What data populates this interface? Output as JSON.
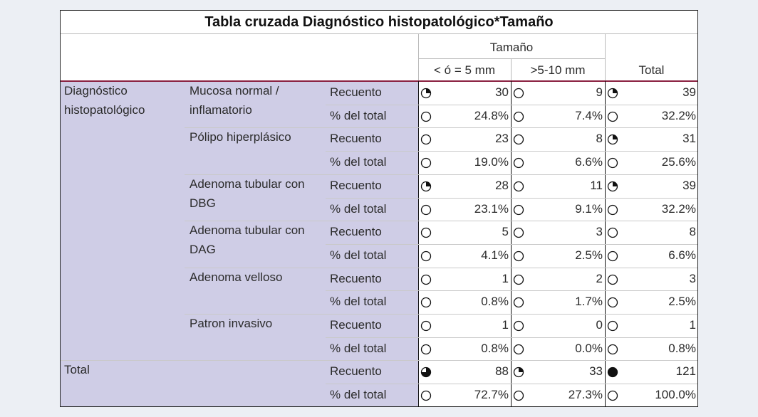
{
  "title": "Tabla cruzada Diagnóstico histopatológico*Tamaño",
  "header": {
    "col_group": "Tamaño",
    "columns": [
      "< ó = 5 mm",
      ">5-10 mm"
    ],
    "total": "Total"
  },
  "row_group": "Diagnóstico histopatológico",
  "rows": [
    {
      "label": "Mucosa normal / inflamatorio",
      "stats": [
        {
          "stat": "Recuento",
          "values": [
            "30",
            "9",
            "39"
          ]
        },
        {
          "stat": "% del total",
          "values": [
            "24.8%",
            "7.4%",
            "32.2%"
          ]
        }
      ]
    },
    {
      "label": "Pólipo hiperplásico",
      "stats": [
        {
          "stat": "Recuento",
          "values": [
            "23",
            "8",
            "31"
          ]
        },
        {
          "stat": "% del total",
          "values": [
            "19.0%",
            "6.6%",
            "25.6%"
          ]
        }
      ]
    },
    {
      "label": "Adenoma tubular con DBG",
      "stats": [
        {
          "stat": "Recuento",
          "values": [
            "28",
            "11",
            "39"
          ]
        },
        {
          "stat": "% del total",
          "values": [
            "23.1%",
            "9.1%",
            "32.2%"
          ]
        }
      ]
    },
    {
      "label": "Adenoma tubular con DAG",
      "stats": [
        {
          "stat": "Recuento",
          "values": [
            "5",
            "3",
            "8"
          ]
        },
        {
          "stat": "% del total",
          "values": [
            "4.1%",
            "2.5%",
            "6.6%"
          ]
        }
      ]
    },
    {
      "label": "Adenoma velloso",
      "stats": [
        {
          "stat": "Recuento",
          "values": [
            "1",
            "2",
            "3"
          ]
        },
        {
          "stat": "% del total",
          "values": [
            "0.8%",
            "1.7%",
            "2.5%"
          ]
        }
      ]
    },
    {
      "label": "Patron invasivo",
      "stats": [
        {
          "stat": "Recuento",
          "values": [
            "1",
            "0",
            "1"
          ]
        },
        {
          "stat": "% del total",
          "values": [
            "0.8%",
            "0.0%",
            "0.8%"
          ]
        }
      ]
    }
  ],
  "total": {
    "label": "Total",
    "stats": [
      {
        "stat": "Recuento",
        "values": [
          "88",
          "33",
          "121"
        ]
      },
      {
        "stat": "% del total",
        "values": [
          "72.7%",
          "27.3%",
          "100.0%"
        ]
      }
    ]
  }
}
